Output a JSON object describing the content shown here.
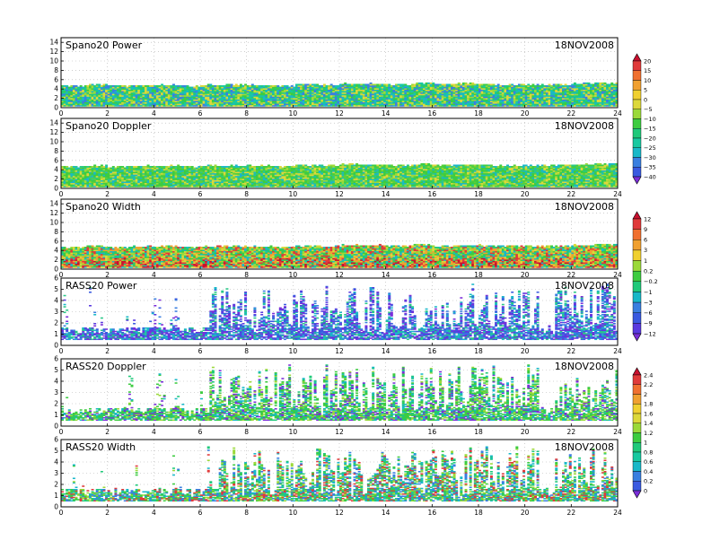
{
  "chart_data": [
    {
      "type": "heatmap",
      "title": "Spano20 Power",
      "date": "18NOV2008",
      "xlim": [
        0,
        24
      ],
      "ylim": [
        0,
        15
      ],
      "xticks": [
        0,
        2,
        4,
        6,
        8,
        10,
        12,
        14,
        16,
        18,
        20,
        22,
        24
      ],
      "yticks": [
        0,
        2,
        4,
        6,
        8,
        10,
        12,
        14
      ],
      "grid": true,
      "kind": "spano",
      "layer_top": [
        4.6,
        4.8,
        4.6,
        4.7,
        4.8,
        4.6,
        4.7,
        4.8,
        4.7,
        4.6,
        4.9,
        4.8,
        5.0,
        5.0,
        4.9,
        5.1,
        4.9,
        5.0,
        4.9,
        4.8,
        4.8,
        4.9,
        5.0,
        5.2,
        5.2
      ],
      "cell_colors": [
        "#3a7fe0",
        "#19b8c8",
        "#18c9a0",
        "#20c97a",
        "#3dcc40",
        "#9bd93a",
        "#dcd83a"
      ],
      "colorbar": "cb1"
    },
    {
      "type": "heatmap",
      "title": "Spano20 Doppler",
      "date": "18NOV2008",
      "xlim": [
        0,
        24
      ],
      "ylim": [
        0,
        15
      ],
      "xticks": [
        0,
        2,
        4,
        6,
        8,
        10,
        12,
        14,
        16,
        18,
        20,
        22,
        24
      ],
      "yticks": [
        0,
        2,
        4,
        6,
        8,
        10,
        12,
        14
      ],
      "grid": true,
      "kind": "spano",
      "layer_top": [
        4.6,
        4.8,
        4.6,
        4.7,
        4.8,
        4.6,
        4.7,
        4.8,
        4.7,
        4.6,
        4.9,
        4.8,
        5.0,
        5.0,
        4.9,
        5.1,
        4.9,
        5.0,
        4.9,
        4.8,
        4.8,
        4.9,
        5.0,
        5.2,
        5.2
      ],
      "cell_colors": [
        "#3dcc40",
        "#3dcc40",
        "#5ccf3a",
        "#9bd93a",
        "#2ac888",
        "#19b8c8",
        "#dcd83a"
      ]
    },
    {
      "type": "heatmap",
      "title": "Spano20 Width",
      "date": "18NOV2008",
      "xlim": [
        0,
        24
      ],
      "ylim": [
        0,
        15
      ],
      "xticks": [
        0,
        2,
        4,
        6,
        8,
        10,
        12,
        14,
        16,
        18,
        20,
        22,
        24
      ],
      "yticks": [
        0,
        2,
        4,
        6,
        8,
        10,
        12,
        14
      ],
      "grid": true,
      "kind": "spano",
      "layer_top": [
        4.6,
        4.8,
        4.6,
        4.7,
        4.8,
        4.6,
        4.7,
        4.8,
        4.7,
        4.6,
        4.9,
        4.8,
        5.0,
        5.0,
        4.9,
        5.1,
        4.9,
        5.0,
        4.9,
        4.8,
        4.8,
        4.9,
        5.0,
        5.2,
        5.2
      ],
      "cell_colors": [
        "#3dcc40",
        "#9bd93a",
        "#dcd83a",
        "#f0a030",
        "#e03a3a",
        "#19b8c8",
        "#20c97a"
      ],
      "colorbar": "cb2"
    },
    {
      "type": "heatmap",
      "title": "RASS20 Power",
      "date": "18NOV2008",
      "xlim": [
        0,
        24
      ],
      "ylim": [
        0,
        6
      ],
      "xticks": [
        0,
        2,
        4,
        6,
        8,
        10,
        12,
        14,
        16,
        18,
        20,
        22,
        24
      ],
      "yticks": [
        0,
        1,
        2,
        3,
        4,
        5,
        6
      ],
      "grid": true,
      "kind": "rass",
      "cell_colors": [
        "#3a5ae0",
        "#5a3ae0",
        "#19b8c8",
        "#2ac888",
        "#3a7fe0",
        "#7a2ed8"
      ]
    },
    {
      "type": "heatmap",
      "title": "RASS20 Doppler",
      "date": "18NOV2008",
      "xlim": [
        0,
        24
      ],
      "ylim": [
        0,
        6
      ],
      "xticks": [
        0,
        2,
        4,
        6,
        8,
        10,
        12,
        14,
        16,
        18,
        20,
        22,
        24
      ],
      "yticks": [
        0,
        1,
        2,
        3,
        4,
        5,
        6
      ],
      "grid": true,
      "kind": "rass",
      "cell_colors": [
        "#3dcc40",
        "#3dcc40",
        "#20c97a",
        "#19b8c8",
        "#9bd93a",
        "#7a2ed8"
      ],
      "colorbar": "cb3"
    },
    {
      "type": "heatmap",
      "title": "RASS20 Width",
      "date": "18NOV2008",
      "xlim": [
        0,
        24
      ],
      "ylim": [
        0,
        6
      ],
      "xticks": [
        0,
        2,
        4,
        6,
        8,
        10,
        12,
        14,
        16,
        18,
        20,
        22,
        24
      ],
      "yticks": [
        0,
        1,
        2,
        3,
        4,
        5,
        6
      ],
      "grid": true,
      "kind": "rass",
      "cell_colors": [
        "#3dcc40",
        "#20c97a",
        "#19b8c8",
        "#3a7fe0",
        "#9bd93a",
        "#e03a3a"
      ]
    }
  ],
  "colorbars": {
    "cb1": {
      "labels": [
        "20",
        "15",
        "10",
        "5",
        "0",
        "−5",
        "−10",
        "−15",
        "−20",
        "−25",
        "−30",
        "−35",
        "−40"
      ],
      "colors": [
        "#c8102e",
        "#e03a3a",
        "#f07030",
        "#f0a030",
        "#f0d030",
        "#dcd83a",
        "#9bd93a",
        "#3dcc40",
        "#20c97a",
        "#18c9a0",
        "#19b8c8",
        "#3a7fe0",
        "#3a5ae0",
        "#7a2ed8"
      ]
    },
    "cb2": {
      "labels": [
        "12",
        "9",
        "6",
        "3",
        "1",
        "0.2",
        "−0.2",
        "−1",
        "−3",
        "−6",
        "−9",
        "−12"
      ],
      "colors": [
        "#c8102e",
        "#e03a3a",
        "#f07030",
        "#f0a030",
        "#f0d030",
        "#9bd93a",
        "#3dcc40",
        "#20c97a",
        "#19b8c8",
        "#3a7fe0",
        "#3a5ae0",
        "#5a3ae0",
        "#7a2ed8"
      ]
    },
    "cb3": {
      "labels": [
        "2.4",
        "2.2",
        "2",
        "1.8",
        "1.6",
        "1.4",
        "1.2",
        "1",
        "0.8",
        "0.6",
        "0.4",
        "0.2",
        "0"
      ],
      "colors": [
        "#c8102e",
        "#e03a3a",
        "#f07030",
        "#f0a030",
        "#f0d030",
        "#dcd83a",
        "#9bd93a",
        "#3dcc40",
        "#20c97a",
        "#18c9a0",
        "#19b8c8",
        "#3a7fe0",
        "#3a5ae0",
        "#7a2ed8"
      ]
    }
  },
  "legend_placement": "right"
}
